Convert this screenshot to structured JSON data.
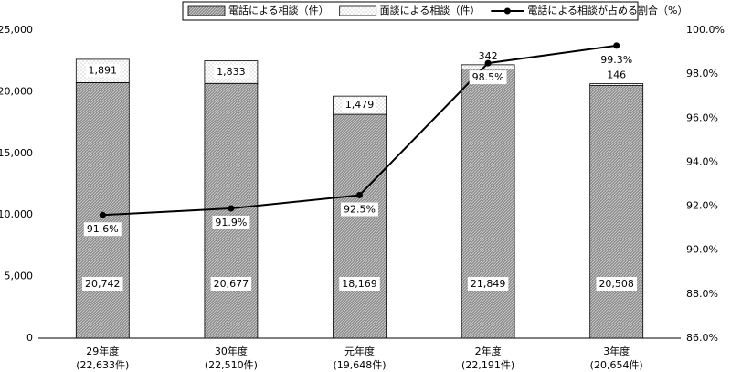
{
  "chart_data": {
    "type": "stacked-bar-line",
    "categories": [
      "29年度",
      "30年度",
      "元年度",
      "2年度",
      "3年度"
    ],
    "category_notes": [
      "(22,633件)",
      "(22,510件)",
      "(19,648件)",
      "(22,191件)",
      "(20,654件)"
    ],
    "series": [
      {
        "name": "電話による相談（件）",
        "type": "bar",
        "color": "#9a9a9a",
        "values": [
          20742,
          20677,
          18169,
          21849,
          20508
        ],
        "value_labels": [
          "20,742",
          "20,677",
          "18,169",
          "21,849",
          "20,508"
        ]
      },
      {
        "name": "面談による相談（件）",
        "type": "bar",
        "color": "#f2f2f2",
        "values": [
          1891,
          1833,
          1479,
          342,
          146
        ],
        "value_labels": [
          "1,891",
          "1,833",
          "1,479",
          "342",
          "146"
        ]
      },
      {
        "name": "電話による相談が占める割合（%）",
        "type": "line",
        "axis": "y2",
        "color": "#000000",
        "values": [
          91.6,
          91.9,
          92.5,
          98.5,
          99.3
        ],
        "value_labels": [
          "91.6%",
          "91.9%",
          "92.5%",
          "98.5%",
          "99.3%"
        ]
      }
    ],
    "ylim": [
      0,
      25000
    ],
    "yticks": [
      0,
      {
        "value": 5000,
        "label": "5,000"
      },
      {
        "value": 10000,
        "label": "10,000"
      },
      {
        "value": 15000,
        "label": "15,000"
      },
      {
        "value": 20000,
        "label": "20,000"
      },
      {
        "value": 25000,
        "label": "25,000"
      }
    ],
    "y2lim": [
      86,
      100
    ],
    "y2ticks": [
      {
        "value": 86,
        "label": "86.0%"
      },
      {
        "value": 88,
        "label": "88.0%"
      },
      {
        "value": 90,
        "label": "90.0%"
      },
      {
        "value": 92,
        "label": "92.0%"
      },
      {
        "value": 94,
        "label": "94.0%"
      },
      {
        "value": 96,
        "label": "96.0%"
      },
      {
        "value": 98,
        "label": "98.0%"
      },
      {
        "value": 100,
        "label": "100.0%"
      }
    ],
    "grid": false
  }
}
